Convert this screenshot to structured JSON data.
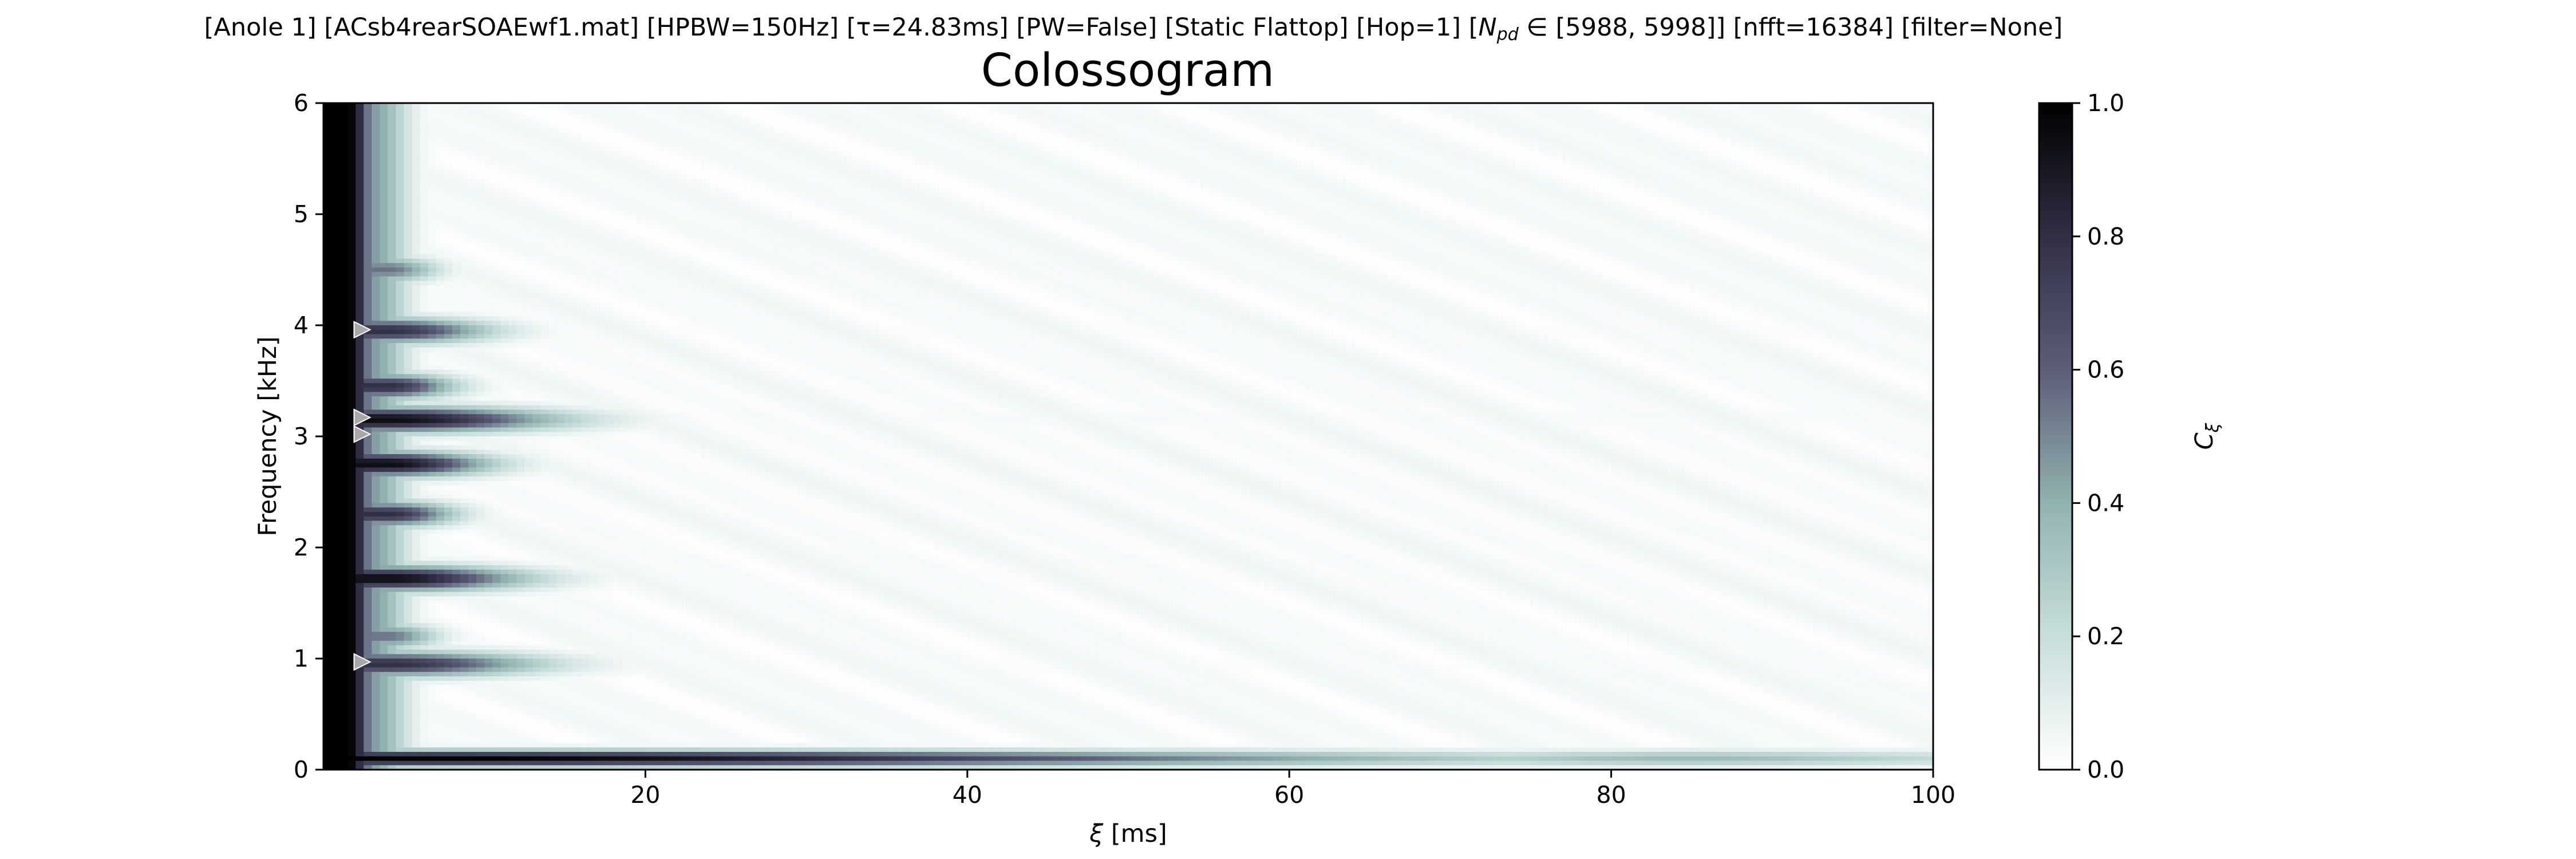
{
  "chart_data": {
    "type": "heatmap",
    "header": "[Anole 1]   [ACsb4rearSOAEwf1.mat]   [HPBW=150Hz]   [τ=24.83ms]   [PW=False]   [Static Flattop]   [Hop=1]   [Npd ∈ [5988, 5998]]   [nfft=16384]   [filter=None]",
    "title": "Colossogram",
    "xlabel": "ξ [ms]",
    "ylabel": "Frequency [kHz]",
    "colorbar_label": "Cξ",
    "xlim": [
      0,
      100
    ],
    "ylim": [
      0,
      6
    ],
    "clim": [
      0,
      1
    ],
    "xticks": [
      "20",
      "40",
      "60",
      "80",
      "100"
    ],
    "yticks": [
      "0",
      "1",
      "2",
      "3",
      "4",
      "5",
      "6"
    ],
    "cticks": [
      "0.0",
      "0.2",
      "0.4",
      "0.6",
      "0.8",
      "1.0"
    ],
    "colormap": "bone_r",
    "colormap_stops": [
      {
        "v": 0.0,
        "color": "#ffffff"
      },
      {
        "v": 0.2,
        "color": "#c7dedc"
      },
      {
        "v": 0.4,
        "color": "#92b2b0"
      },
      {
        "v": 0.6,
        "color": "#5c5d78"
      },
      {
        "v": 0.8,
        "color": "#302f45"
      },
      {
        "v": 1.0,
        "color": "#000000"
      }
    ],
    "bands": [
      {
        "freq_khz": 0.1,
        "peak": 1.0,
        "decay_ms": 60,
        "floor": 0.35
      },
      {
        "freq_khz": 0.95,
        "peak": 0.8,
        "decay_ms": 9,
        "floor": 0.02
      },
      {
        "freq_khz": 1.2,
        "peak": 0.55,
        "decay_ms": 3,
        "floor": 0.0
      },
      {
        "freq_khz": 1.72,
        "peak": 0.95,
        "decay_ms": 8,
        "floor": 0.02
      },
      {
        "freq_khz": 2.3,
        "peak": 0.8,
        "decay_ms": 4,
        "floor": 0.0
      },
      {
        "freq_khz": 2.75,
        "peak": 0.95,
        "decay_ms": 6,
        "floor": 0.0
      },
      {
        "freq_khz": 3.15,
        "peak": 0.95,
        "decay_ms": 10,
        "floor": 0.03
      },
      {
        "freq_khz": 3.45,
        "peak": 0.8,
        "decay_ms": 4,
        "floor": 0.0
      },
      {
        "freq_khz": 3.95,
        "peak": 0.8,
        "decay_ms": 6,
        "floor": 0.02
      },
      {
        "freq_khz": 4.5,
        "peak": 0.55,
        "decay_ms": 3,
        "floor": 0.0
      }
    ],
    "markers": [
      {
        "xi_ms": 2.4,
        "freq_khz": 0.97
      },
      {
        "xi_ms": 2.4,
        "freq_khz": 3.02
      },
      {
        "xi_ms": 2.4,
        "freq_khz": 3.17
      },
      {
        "xi_ms": 2.4,
        "freq_khz": 3.96
      }
    ],
    "grid": false
  }
}
